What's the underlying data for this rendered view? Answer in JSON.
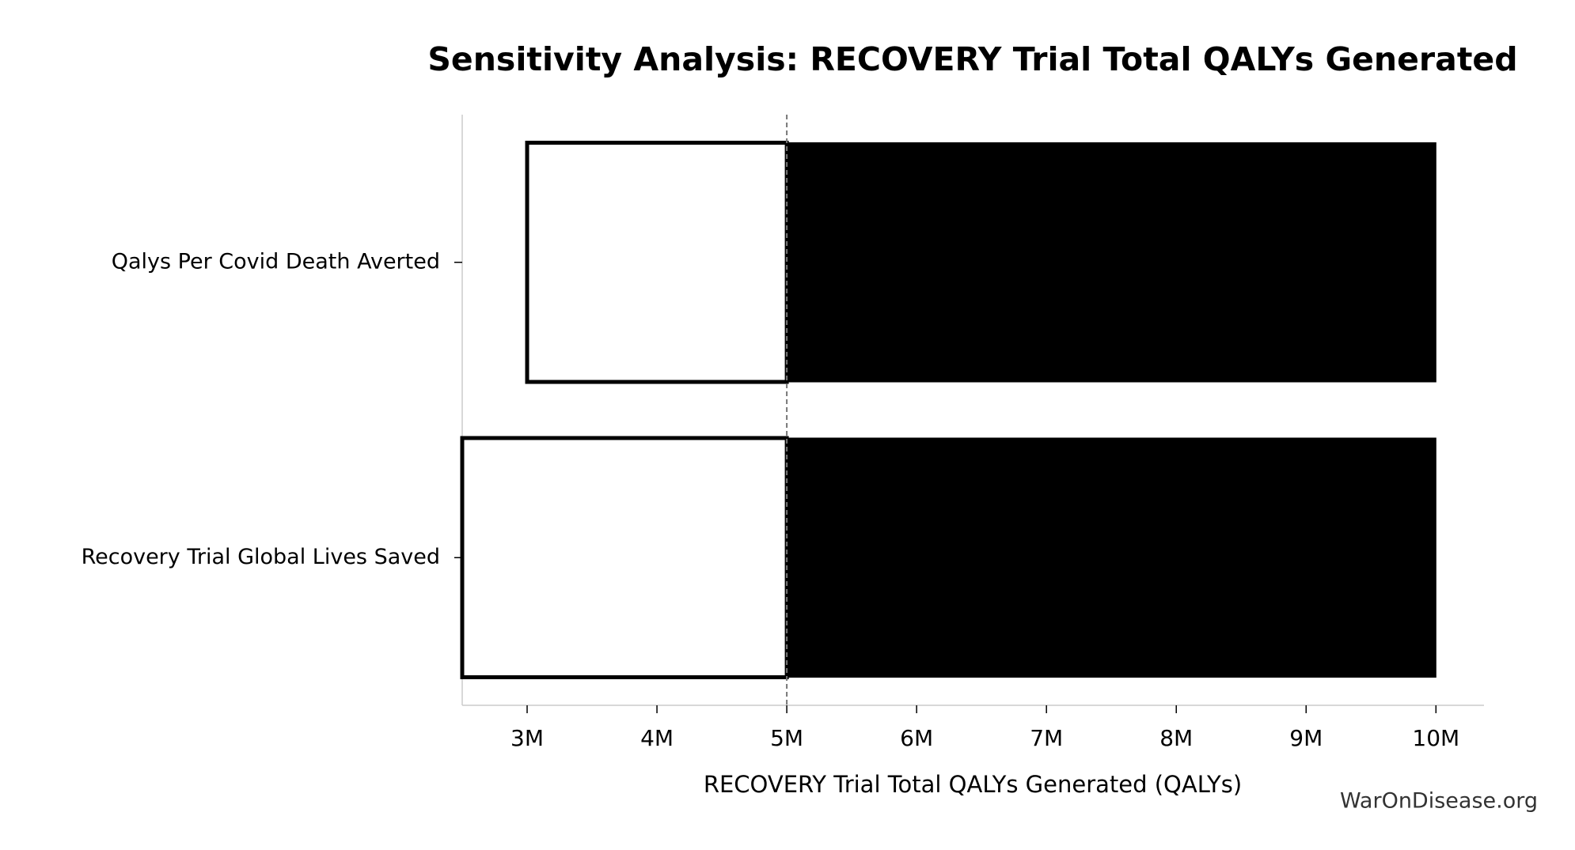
{
  "chart_data": {
    "type": "tornado",
    "title": "Sensitivity Analysis: RECOVERY Trial Total QALYs Generated",
    "xlabel": "RECOVERY Trial Total QALYs Generated (QALYs)",
    "categories": [
      "Qalys Per Covid Death Averted",
      "Recovery Trial Global Lives Saved"
    ],
    "baseline": 5000000,
    "series": [
      {
        "color": "#ffffff",
        "values": [
          3000000,
          2500000
        ]
      },
      {
        "color": "#000000",
        "values": [
          10000000,
          10000000
        ]
      }
    ],
    "xlim": [
      2500000,
      10370000
    ],
    "xticks": [
      {
        "value": 3000000,
        "label": "3M"
      },
      {
        "value": 4000000,
        "label": "4M"
      },
      {
        "value": 5000000,
        "label": "5M"
      },
      {
        "value": 6000000,
        "label": "6M"
      },
      {
        "value": 7000000,
        "label": "7M"
      },
      {
        "value": 8000000,
        "label": "8M"
      },
      {
        "value": 9000000,
        "label": "9M"
      },
      {
        "value": 10000000,
        "label": "10M"
      }
    ],
    "watermark": "WarOnDisease.org"
  }
}
